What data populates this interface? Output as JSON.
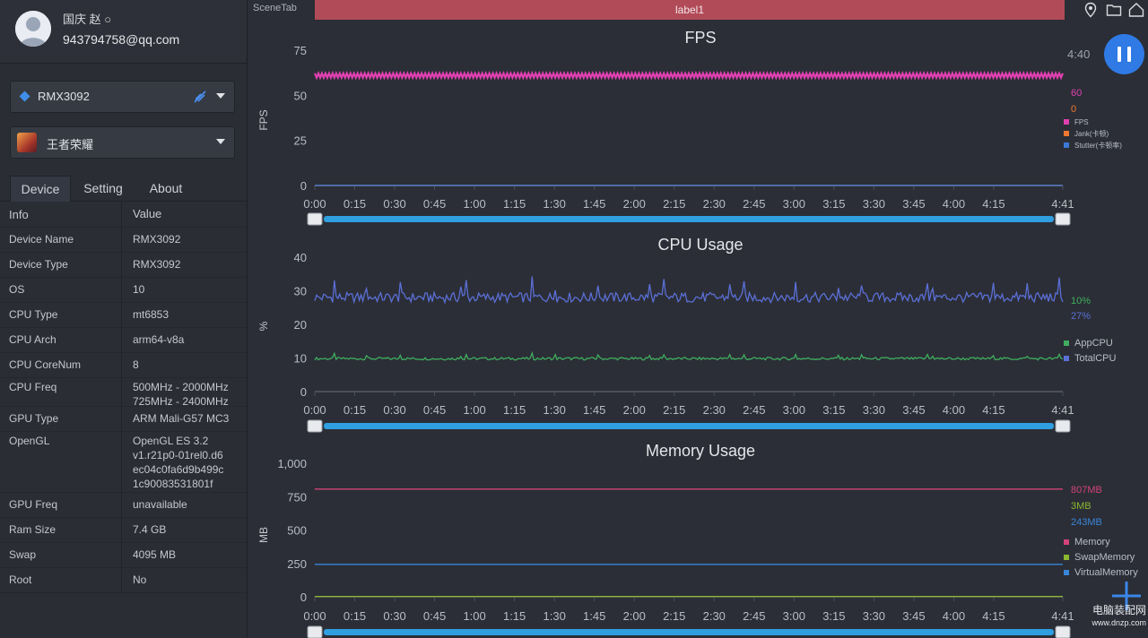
{
  "user": {
    "name": "国庆 赵 ○",
    "email": "943794758@qq.com"
  },
  "device_select": {
    "value": "RMX3092",
    "icon": "android-icon"
  },
  "game_select": {
    "value": "王者荣耀",
    "icon": "game-thumbnail"
  },
  "tabs": [
    {
      "label": "Device",
      "active": true
    },
    {
      "label": "Setting",
      "active": false
    },
    {
      "label": "About",
      "active": false
    }
  ],
  "info_table": {
    "header": {
      "key": "Info",
      "value": "Value"
    },
    "rows": [
      {
        "key": "Device Name",
        "value": "RMX3092"
      },
      {
        "key": "Device Type",
        "value": "RMX3092"
      },
      {
        "key": "OS",
        "value": "10"
      },
      {
        "key": "CPU Type",
        "value": "mt6853"
      },
      {
        "key": "CPU Arch",
        "value": "arm64-v8a"
      },
      {
        "key": "CPU CoreNum",
        "value": "8"
      },
      {
        "key": "CPU Freq",
        "value": "500MHz - 2000MHz\n725MHz - 2400MHz"
      },
      {
        "key": "GPU Type",
        "value": "ARM Mali-G57 MC3"
      },
      {
        "key": "OpenGL",
        "value": "OpenGL ES 3.2\nv1.r21p0-01rel0.d6\nec04c0fa6d9b499c\n1c90083531801f"
      },
      {
        "key": "GPU Freq",
        "value": "unavailable"
      },
      {
        "key": "Ram Size",
        "value": "7.4 GB"
      },
      {
        "key": "Swap",
        "value": "4095 MB"
      },
      {
        "key": "Root",
        "value": "No"
      }
    ]
  },
  "scene_tab": "SceneTab",
  "label_bar": "label1",
  "time_display": "4:40",
  "top_icons": [
    "location-pin-icon",
    "folder-icon",
    "home-icon"
  ],
  "accent_color": "#2f7ae5",
  "label_bar_color": "#b24b58",
  "watermark": {
    "line1": "电脑装配网",
    "line2": "www.dnzp.com"
  },
  "chart_data": [
    {
      "type": "line",
      "title": "FPS",
      "ylabel": "FPS",
      "ylim": [
        0,
        75
      ],
      "yticks": [
        "0",
        "25",
        "50",
        "75"
      ],
      "xticks": [
        "0:00",
        "0:15",
        "0:30",
        "0:45",
        "1:00",
        "1:15",
        "1:30",
        "1:45",
        "2:00",
        "2:15",
        "2:30",
        "2:45",
        "3:00",
        "3:15",
        "3:30",
        "3:45",
        "4:00",
        "4:15",
        "4:41"
      ],
      "grid": false,
      "legend_position": "right",
      "series": [
        {
          "name": "FPS",
          "color": "#e040b0",
          "current": "60",
          "pattern": "zigzag",
          "level": 61,
          "amp": 1.2
        },
        {
          "name": "Jank(卡顿)",
          "color": "#f07830",
          "current": "0",
          "pattern": "flat",
          "level": 0
        },
        {
          "name": "Stutter(卡顿率)",
          "color": "#3a78d8",
          "current": "",
          "pattern": "flat",
          "level": 0
        }
      ],
      "scroller": true
    },
    {
      "type": "line",
      "title": "CPU Usage",
      "ylabel": "%",
      "ylim": [
        0,
        40
      ],
      "yticks": [
        "0",
        "10",
        "20",
        "30",
        "40"
      ],
      "xticks": [
        "0:00",
        "0:15",
        "0:30",
        "0:45",
        "1:00",
        "1:15",
        "1:30",
        "1:45",
        "2:00",
        "2:15",
        "2:30",
        "2:45",
        "3:00",
        "3:15",
        "3:30",
        "3:45",
        "4:00",
        "4:15",
        "4:41"
      ],
      "grid": false,
      "legend_position": "right",
      "series": [
        {
          "name": "AppCPU",
          "color": "#3fae5e",
          "current": "10%",
          "pattern": "noisy",
          "level": 9.8,
          "amp": 0.4
        },
        {
          "name": "TotalCPU",
          "color": "#5b6fd6",
          "current": "27%",
          "pattern": "noisy",
          "level": 28,
          "amp": 1.5
        }
      ],
      "scroller": true
    },
    {
      "type": "line",
      "title": "Memory Usage",
      "ylabel": "MB",
      "ylim": [
        0,
        1000
      ],
      "yticks": [
        "0",
        "250",
        "500",
        "750",
        "1,000"
      ],
      "xticks": [
        "0:00",
        "0:15",
        "0:30",
        "0:45",
        "1:00",
        "1:15",
        "1:30",
        "1:45",
        "2:00",
        "2:15",
        "2:30",
        "2:45",
        "3:00",
        "3:15",
        "3:30",
        "3:45",
        "4:00",
        "4:15",
        "4:41"
      ],
      "grid": false,
      "legend_position": "right",
      "series": [
        {
          "name": "Memory",
          "color": "#d2447a",
          "current": "807MB",
          "pattern": "flat",
          "level": 807
        },
        {
          "name": "SwapMemory",
          "color": "#8bb62f",
          "current": "3MB",
          "pattern": "flat",
          "level": 3
        },
        {
          "name": "VirtualMemory",
          "color": "#3a86d8",
          "current": "243MB",
          "pattern": "flat",
          "level": 243
        }
      ],
      "scroller": true
    }
  ]
}
